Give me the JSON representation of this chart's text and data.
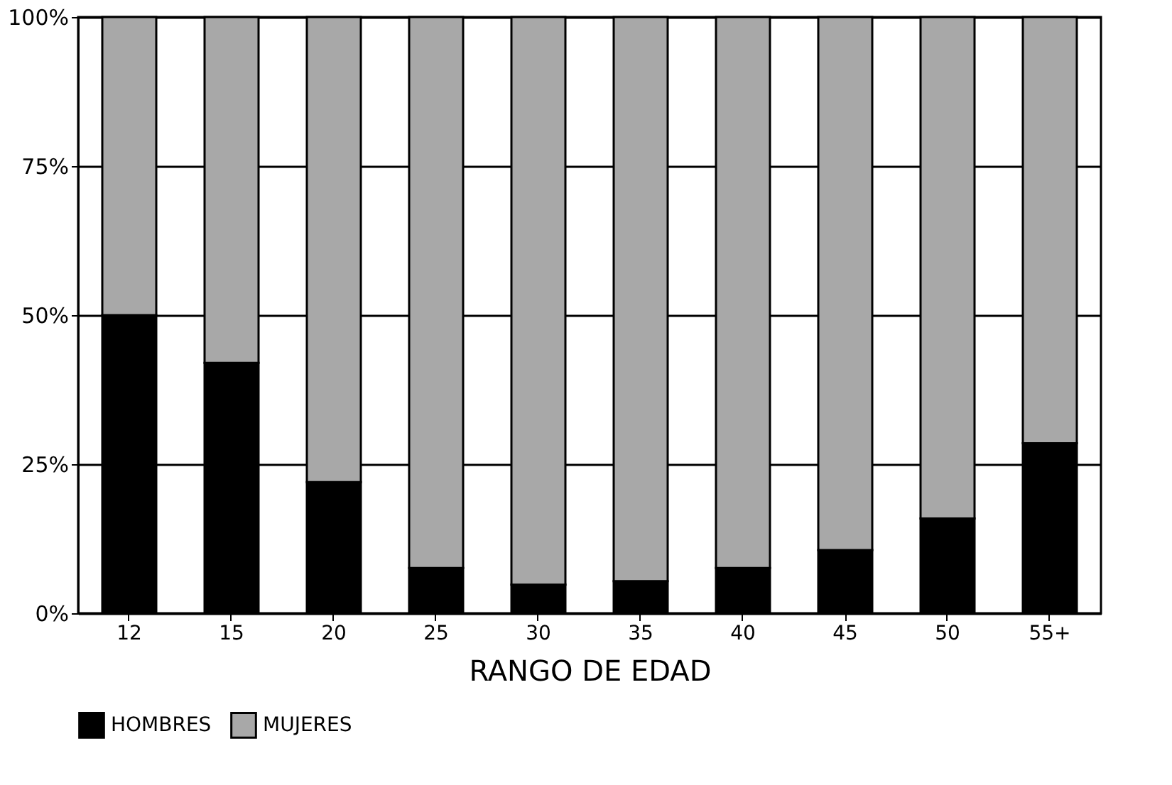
{
  "chart_data": {
    "type": "bar",
    "stacked": true,
    "xlabel": "RANGO DE EDAD",
    "categories": [
      "12",
      "15",
      "20",
      "25",
      "30",
      "35",
      "40",
      "45",
      "50",
      "55+"
    ],
    "series": [
      {
        "name": "HOMBRES",
        "color": "#000000",
        "values": [
          50,
          42,
          22,
          7.6,
          4.8,
          5.4,
          7.6,
          10.6,
          15.9,
          28.5
        ]
      },
      {
        "name": "MUJERES",
        "color": "#a8a8a8",
        "values": [
          50,
          58,
          78,
          92.4,
          95.2,
          94.6,
          92.4,
          89.4,
          84.1,
          71.5
        ]
      }
    ],
    "ylim": [
      0,
      100
    ],
    "yticks": [
      {
        "value": 0,
        "label": "0%"
      },
      {
        "value": 25,
        "label": "25%"
      },
      {
        "value": 50,
        "label": "50%"
      },
      {
        "value": 75,
        "label": "75%"
      },
      {
        "value": 100,
        "label": "100%"
      }
    ],
    "grid": "y",
    "legend": "bottom"
  }
}
